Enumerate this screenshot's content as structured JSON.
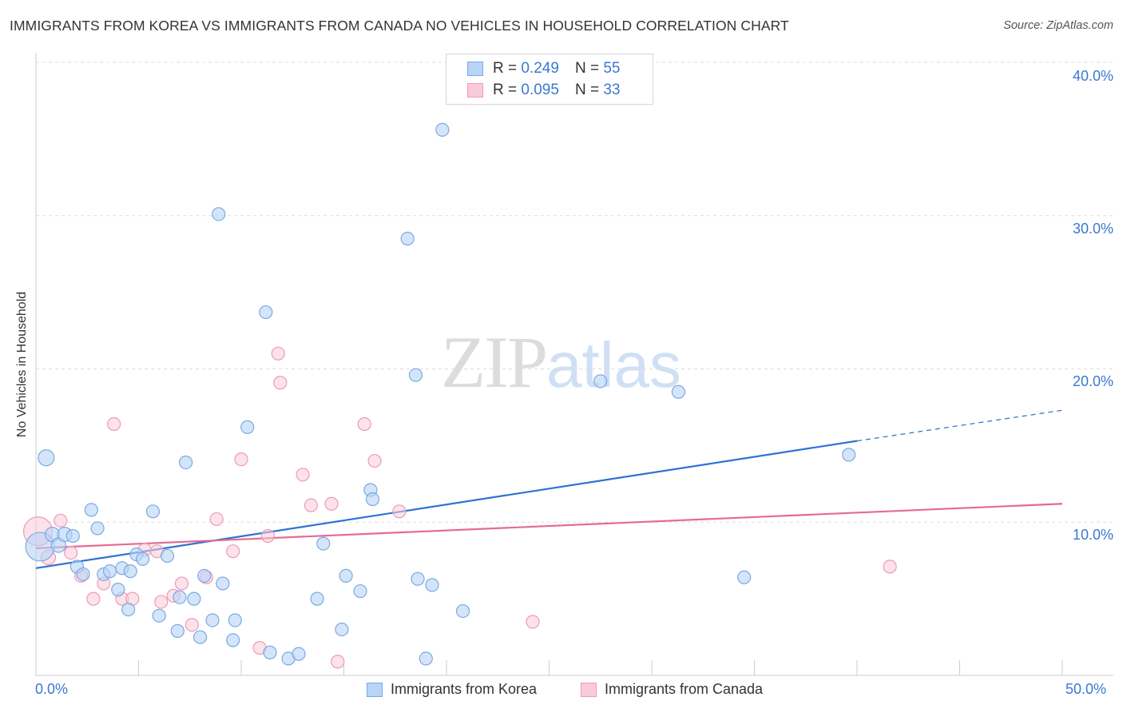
{
  "title": "IMMIGRANTS FROM KOREA VS IMMIGRANTS FROM CANADA NO VEHICLES IN HOUSEHOLD CORRELATION CHART",
  "source": "Source: ZipAtlas.com",
  "watermark": {
    "zip": "ZIP",
    "atlas": "atlas"
  },
  "legend": {
    "rows": [
      {
        "r_label": "R =",
        "r_value": "0.249",
        "n_label": "N =",
        "n_value": "55"
      },
      {
        "r_label": "R =",
        "r_value": "0.095",
        "n_label": "N =",
        "n_value": "33"
      }
    ]
  },
  "colors": {
    "korea_fill": "#b8d4f6",
    "korea_stroke": "#7aa9e3",
    "korea_line": "#2f72d2",
    "canada_fill": "#f9cbd8",
    "canada_stroke": "#ee9bb4",
    "canada_line": "#e56a95",
    "tick_text": "#3a78d0",
    "grid": "#dddddd"
  },
  "chart_data": {
    "type": "scatter",
    "title": "IMMIGRANTS FROM KOREA VS IMMIGRANTS FROM CANADA NO VEHICLES IN HOUSEHOLD CORRELATION CHART",
    "xlabel": "",
    "ylabel": "No Vehicles in Household",
    "xlim": [
      0,
      50
    ],
    "ylim": [
      0,
      40
    ],
    "x_tick_labels": [
      "0.0%",
      "50.0%"
    ],
    "y_ticks": [
      10,
      20,
      30,
      40
    ],
    "y_tick_labels": [
      "10.0%",
      "20.0%",
      "30.0%",
      "40.0%"
    ],
    "grid": true,
    "legend_position": "top-center",
    "series": [
      {
        "name": "Immigrants from Korea",
        "r": 0.249,
        "n": 55,
        "trend": {
          "x": [
            0,
            40
          ],
          "y": [
            7.0,
            15.3
          ],
          "dashed_to": [
            50,
            17.3
          ]
        },
        "points": [
          [
            0.2,
            8.4,
            18
          ],
          [
            0.5,
            14.2,
            10
          ],
          [
            0.8,
            9.2,
            9
          ],
          [
            1.1,
            8.5,
            9
          ],
          [
            1.4,
            9.2,
            9
          ],
          [
            1.8,
            9.1,
            8
          ],
          [
            2.0,
            7.1,
            8
          ],
          [
            2.3,
            6.6,
            8
          ],
          [
            2.7,
            10.8,
            8
          ],
          [
            3.0,
            9.6,
            8
          ],
          [
            3.3,
            6.6,
            8
          ],
          [
            3.6,
            6.8,
            8
          ],
          [
            4.0,
            5.6,
            8
          ],
          [
            4.2,
            7.0,
            8
          ],
          [
            4.5,
            4.3,
            8
          ],
          [
            4.6,
            6.8,
            8
          ],
          [
            4.9,
            7.9,
            8
          ],
          [
            5.2,
            7.6,
            8
          ],
          [
            5.7,
            10.7,
            8
          ],
          [
            6.0,
            3.9,
            8
          ],
          [
            6.4,
            7.8,
            8
          ],
          [
            6.9,
            2.9,
            8
          ],
          [
            7.0,
            5.1,
            8
          ],
          [
            7.3,
            13.9,
            8
          ],
          [
            7.7,
            5.0,
            8
          ],
          [
            8.0,
            2.5,
            8
          ],
          [
            8.2,
            6.5,
            8
          ],
          [
            8.6,
            3.6,
            8
          ],
          [
            8.9,
            30.1,
            8
          ],
          [
            9.1,
            6.0,
            8
          ],
          [
            9.6,
            2.3,
            8
          ],
          [
            9.7,
            3.6,
            8
          ],
          [
            10.3,
            16.2,
            8
          ],
          [
            11.2,
            23.7,
            8
          ],
          [
            11.4,
            1.5,
            8
          ],
          [
            12.3,
            1.1,
            8
          ],
          [
            12.8,
            1.4,
            8
          ],
          [
            13.7,
            5.0,
            8
          ],
          [
            14.0,
            8.6,
            8
          ],
          [
            14.9,
            3.0,
            8
          ],
          [
            15.1,
            6.5,
            8
          ],
          [
            15.8,
            5.5,
            8
          ],
          [
            16.3,
            12.1,
            8
          ],
          [
            16.4,
            11.5,
            8
          ],
          [
            18.1,
            28.5,
            8
          ],
          [
            18.5,
            19.6,
            8
          ],
          [
            18.6,
            6.3,
            8
          ],
          [
            19.0,
            1.1,
            8
          ],
          [
            19.3,
            5.9,
            8
          ],
          [
            19.8,
            35.6,
            8
          ],
          [
            20.8,
            4.2,
            8
          ],
          [
            27.5,
            19.2,
            8
          ],
          [
            31.3,
            18.5,
            8
          ],
          [
            34.5,
            6.4,
            8
          ],
          [
            39.6,
            14.4,
            8
          ]
        ]
      },
      {
        "name": "Immigrants from Canada",
        "r": 0.095,
        "n": 33,
        "trend": {
          "x": [
            0,
            50
          ],
          "y": [
            8.3,
            11.2
          ]
        },
        "points": [
          [
            0.1,
            9.4,
            18
          ],
          [
            0.6,
            7.7,
            9
          ],
          [
            1.2,
            10.1,
            8
          ],
          [
            1.7,
            8.0,
            8
          ],
          [
            2.2,
            6.5,
            8
          ],
          [
            2.8,
            5.0,
            8
          ],
          [
            3.3,
            6.0,
            8
          ],
          [
            3.8,
            16.4,
            8
          ],
          [
            4.2,
            5.0,
            8
          ],
          [
            4.7,
            5.0,
            8
          ],
          [
            5.3,
            8.2,
            8
          ],
          [
            5.9,
            8.1,
            8
          ],
          [
            6.1,
            4.8,
            8
          ],
          [
            6.7,
            5.2,
            8
          ],
          [
            7.1,
            6.0,
            8
          ],
          [
            7.6,
            3.3,
            8
          ],
          [
            8.3,
            6.4,
            8
          ],
          [
            8.8,
            10.2,
            8
          ],
          [
            9.6,
            8.1,
            8
          ],
          [
            10.0,
            14.1,
            8
          ],
          [
            10.9,
            1.8,
            8
          ],
          [
            11.3,
            9.1,
            8
          ],
          [
            11.8,
            21.0,
            8
          ],
          [
            11.9,
            19.1,
            8
          ],
          [
            13.0,
            13.1,
            8
          ],
          [
            13.4,
            11.1,
            8
          ],
          [
            14.4,
            11.2,
            8
          ],
          [
            14.7,
            0.9,
            8
          ],
          [
            16.0,
            16.4,
            8
          ],
          [
            16.5,
            14.0,
            8
          ],
          [
            17.7,
            10.7,
            8
          ],
          [
            24.2,
            3.5,
            8
          ],
          [
            41.6,
            7.1,
            8
          ]
        ]
      }
    ]
  }
}
